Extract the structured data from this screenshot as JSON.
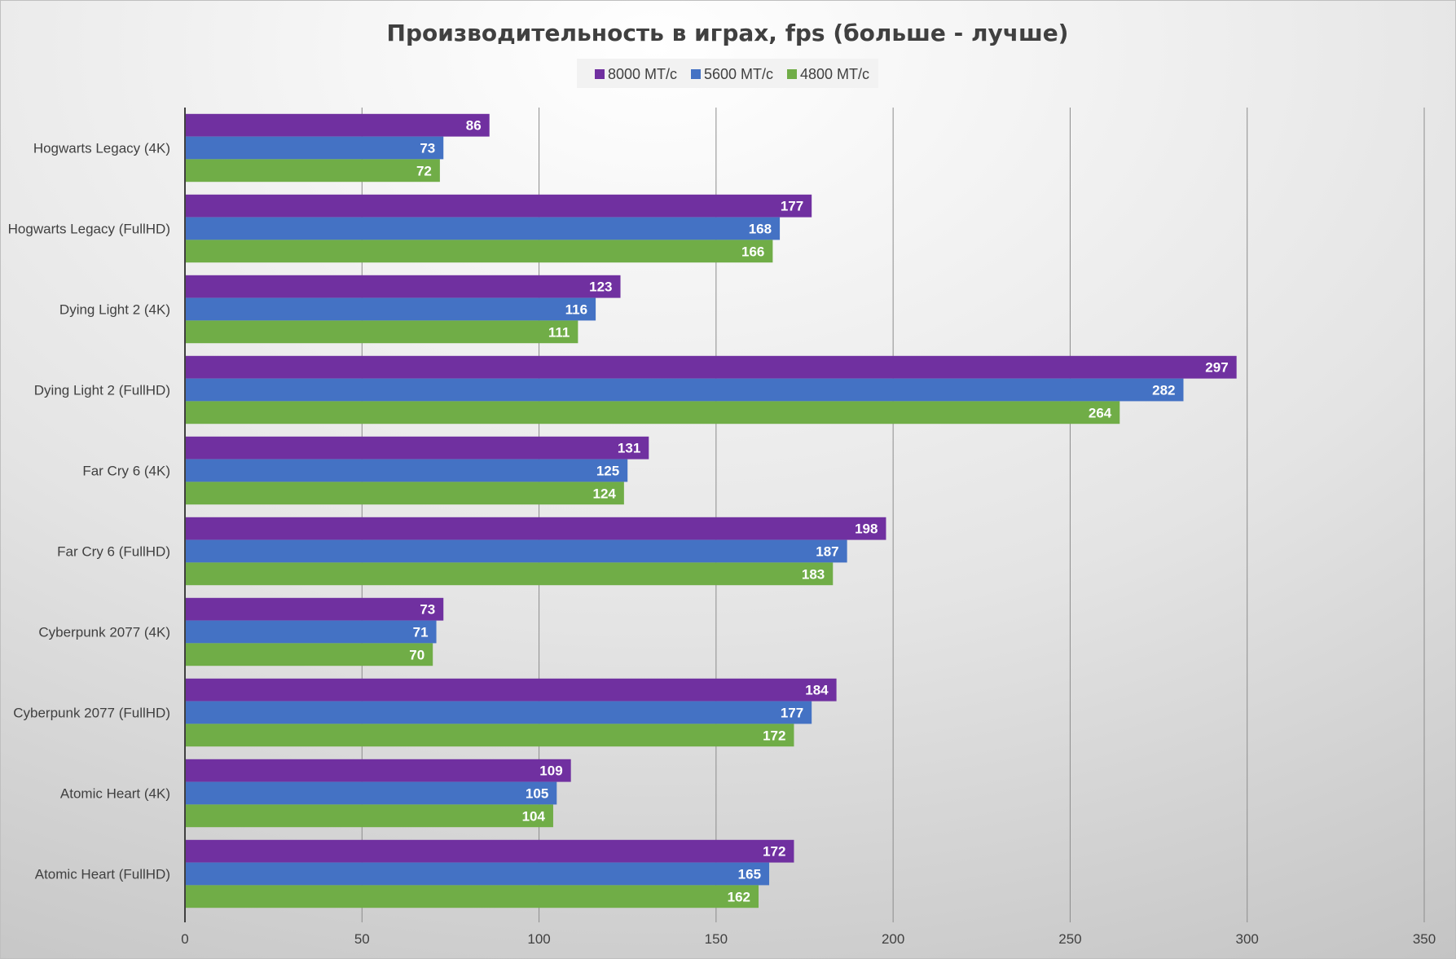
{
  "chart_data": {
    "type": "bar",
    "orientation": "horizontal",
    "title": "Производительность в играх, fps (больше - лучше)",
    "xlabel": "",
    "ylabel": "",
    "xlim": [
      0,
      350
    ],
    "xticks": [
      0,
      50,
      100,
      150,
      200,
      250,
      300,
      350
    ],
    "grid": true,
    "legend_position": "top",
    "categories": [
      "Hogwarts Legacy (4K)",
      "Hogwarts Legacy (FullHD)",
      "Dying Light 2 (4K)",
      "Dying Light 2 (FullHD)",
      "Far Cry 6 (4K)",
      "Far Cry 6 (FullHD)",
      "Cyberpunk 2077 (4K)",
      "Cyberpunk 2077 (FullHD)",
      "Atomic Heart (4K)",
      "Atomic Heart (FullHD)"
    ],
    "series": [
      {
        "name": "8000 МТ/с",
        "color": "#7030a0",
        "values": [
          86,
          177,
          123,
          297,
          131,
          198,
          73,
          184,
          109,
          172
        ]
      },
      {
        "name": "5600 МТ/с",
        "color": "#4472c4",
        "values": [
          73,
          168,
          116,
          282,
          125,
          187,
          71,
          177,
          105,
          165
        ]
      },
      {
        "name": "4800 МТ/с",
        "color": "#70ad47",
        "values": [
          72,
          166,
          111,
          264,
          124,
          183,
          70,
          172,
          104,
          162
        ]
      }
    ]
  }
}
